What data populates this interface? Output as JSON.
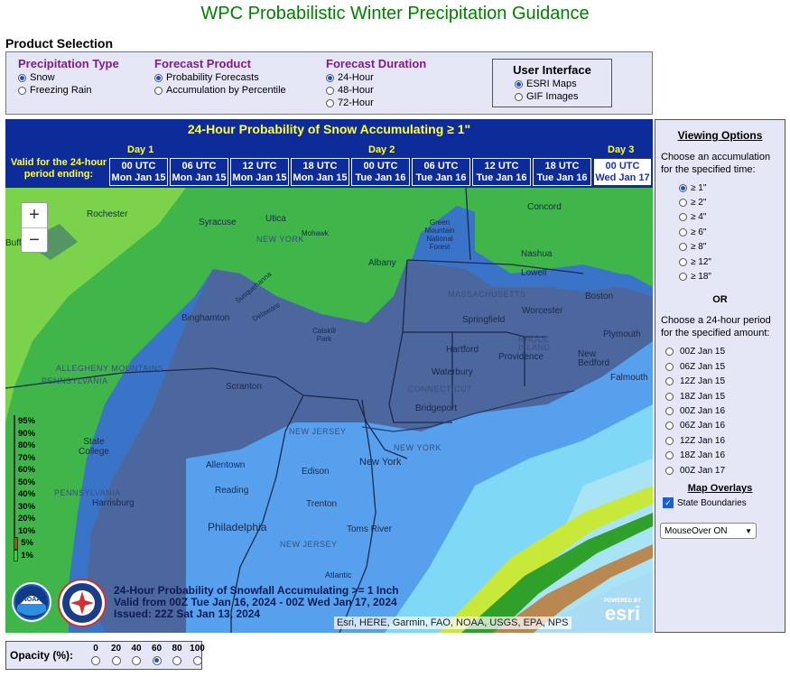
{
  "page_title": "WPC Probabilistic Winter Precipitation Guidance",
  "product_selection": {
    "label": "Product Selection",
    "precip_type": {
      "title": "Precipitation Type",
      "options": [
        "Snow",
        "Freezing Rain"
      ],
      "selected": "Snow"
    },
    "forecast_product": {
      "title": "Forecast Product",
      "options": [
        "Probability Forecasts",
        "Accumulation by Percentile"
      ],
      "selected": "Probability Forecasts"
    },
    "forecast_duration": {
      "title": "Forecast Duration",
      "options": [
        "24-Hour",
        "48-Hour",
        "72-Hour"
      ],
      "selected": "24-Hour"
    },
    "user_interface": {
      "title": "User Interface",
      "options": [
        "ESRI Maps",
        "GIF Images"
      ],
      "selected": "ESRI Maps"
    }
  },
  "map_header": {
    "title": "24-Hour Probability of Snow Accumulating ≥ 1\"",
    "valid_label_1": "Valid for the 24-hour",
    "valid_label_2": "period ending:",
    "days": [
      "Day 1",
      "Day 2",
      "Day 3"
    ],
    "periods": [
      {
        "time": "00 UTC",
        "date": "Mon Jan 15"
      },
      {
        "time": "06 UTC",
        "date": "Mon Jan 15"
      },
      {
        "time": "12 UTC",
        "date": "Mon Jan 15"
      },
      {
        "time": "18 UTC",
        "date": "Mon Jan 15"
      },
      {
        "time": "00 UTC",
        "date": "Tue Jan 16"
      },
      {
        "time": "06 UTC",
        "date": "Tue Jan 16"
      },
      {
        "time": "12 UTC",
        "date": "Tue Jan 16"
      },
      {
        "time": "18 UTC",
        "date": "Tue Jan 16"
      },
      {
        "time": "00 UTC",
        "date": "Wed Jan 17"
      }
    ],
    "selected_period": "00 UTC Wed Jan 17"
  },
  "map": {
    "zoom_in": "+",
    "zoom_out": "−",
    "legend": [
      {
        "label": "95%",
        "color": "#8b1a1a"
      },
      {
        "label": "90%",
        "color": "#e8312a"
      },
      {
        "label": "80%",
        "color": "#f07a3a"
      },
      {
        "label": "70%",
        "color": "#3ad7e8"
      },
      {
        "label": "60%",
        "color": "#4fb1f0"
      },
      {
        "label": "50%",
        "color": "#3a77c4"
      },
      {
        "label": "40%",
        "color": "#1f3f8c"
      },
      {
        "label": "30%",
        "color": "#1b8a2a"
      },
      {
        "label": "20%",
        "color": "#36c23a"
      },
      {
        "label": "10%",
        "color": "#c8e83a"
      },
      {
        "label": "5%",
        "color": "#8b5a2b"
      },
      {
        "label": "1%",
        "color": "#4fc24f"
      }
    ],
    "info_line1": "24-Hour Probability of Snowfall Accumulating >= 1 Inch",
    "info_line2": "Valid from 00Z Tue Jan 16, 2024 - 00Z Wed Jan 17, 2024",
    "info_line3": "Issued: 22Z Sat Jan 13, 2024",
    "attribution": "Esri, HERE, Garmin, FAO, NOAA, USGS, EPA, NPS",
    "esri_powered": "POWERED BY",
    "esri_word": "esri",
    "noaa_text": "NOAA",
    "labels": {
      "rochester": "Rochester",
      "syracuse": "Syracuse",
      "utica": "Utica",
      "new_york_state": "NEW YORK",
      "mohawk": "Mohawk",
      "albany": "Albany",
      "green_mountain": "Green Mountain National Forest",
      "concord": "Concord",
      "nashua": "Nashua",
      "lowell": "Lowell",
      "boston": "Boston",
      "massachusetts": "MASSACHUSETTS",
      "springfield": "Springfield",
      "worcester": "Worcester",
      "binghamton": "Binghamton",
      "catskill": "Catskill Park",
      "susquehanna": "Susquehanna",
      "delaware": "Delaware",
      "hartford": "Hartford",
      "providence": "Providence",
      "rhode_island": "RHODE ISLAND",
      "plymouth": "Plymouth",
      "new_bedford": "New Bedford",
      "falmouth": "Falmouth",
      "allegheny": "ALLEGHENY MOUNTAINS",
      "pennsylvania": "PENNSYLVANIA",
      "scranton": "Scranton",
      "waterbury": "Waterbury",
      "connecticut": "CONNECTICUT",
      "bridgeport": "Bridgeport",
      "state_college": "State College",
      "new_jersey": "NEW JERSEY",
      "allentown": "Allentown",
      "edison": "Edison",
      "new_york_city": "New York",
      "new_york_city_upper": "NEW YORK",
      "reading": "Reading",
      "harrisburg": "Harrisburg",
      "trenton": "Trenton",
      "philadelphia": "Philadelphia",
      "toms_river": "Toms River",
      "new_jersey_2": "NEW JERSEY",
      "atlantic": "Atlantic",
      "pennsylvania_2": "PENNSYLVANIA",
      "buff": "Buff"
    }
  },
  "side_panel": {
    "viewing_options": "Viewing Options",
    "accum_text": "Choose an accumulation for the specified time:",
    "accum_options": [
      "≥ 1\"",
      "≥ 2\"",
      "≥ 4\"",
      "≥ 6\"",
      "≥ 8\"",
      "≥ 12\"",
      "≥ 18\""
    ],
    "accum_selected": "≥ 1\"",
    "or_text": "OR",
    "period_text": "Choose a 24-hour period for the specified amount:",
    "period_options": [
      "00Z Jan 15",
      "06Z Jan 15",
      "12Z Jan 15",
      "18Z Jan 15",
      "00Z Jan 16",
      "06Z Jan 16",
      "12Z Jan 16",
      "18Z Jan 16",
      "00Z Jan 17"
    ],
    "map_overlays": "Map Overlays",
    "state_boundaries": "State Boundaries",
    "state_boundaries_checked": true,
    "mouseover_value": "MouseOver ON"
  },
  "opacity": {
    "label": "Opacity (%):",
    "values": [
      "0",
      "20",
      "40",
      "60",
      "80",
      "100"
    ],
    "selected": "60"
  }
}
